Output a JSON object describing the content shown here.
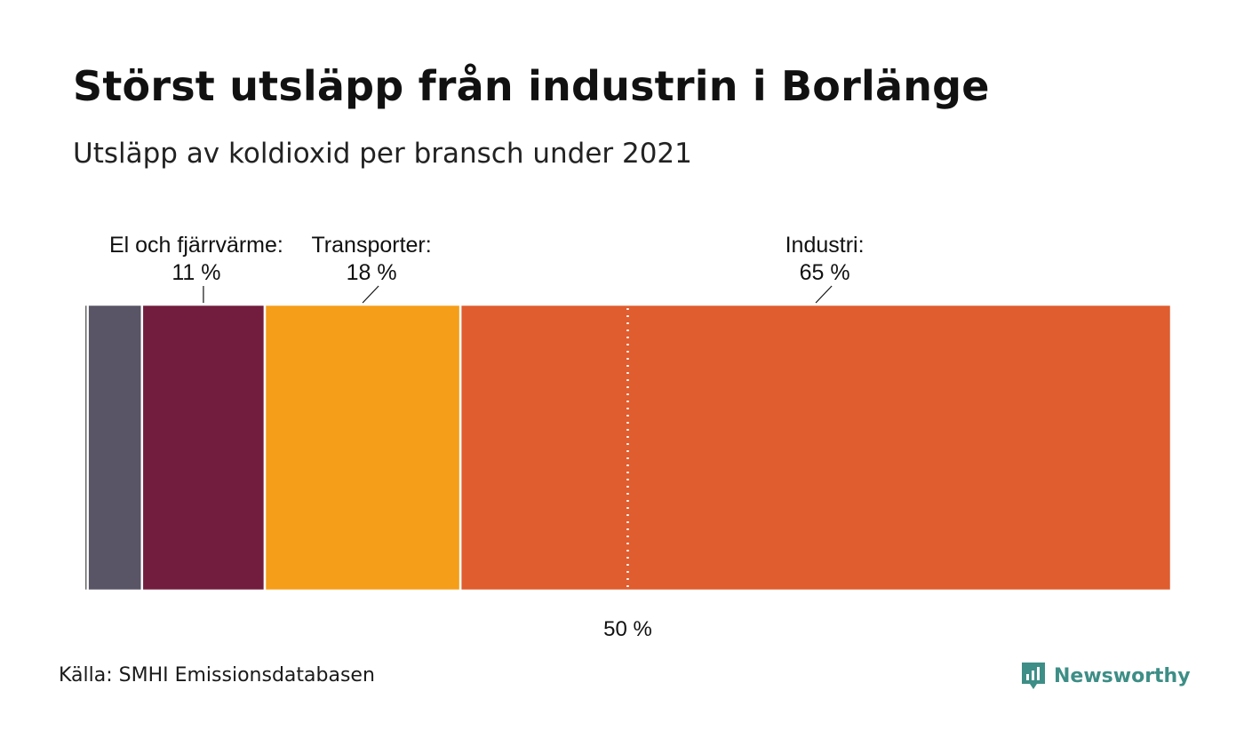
{
  "title": "Störst utsläpp från industrin i Borlänge",
  "subtitle": "Utsläpp av koldioxid per bransch under 2021",
  "source": "Källa: SMHI Emissionsdatabasen",
  "logo": {
    "text": "Newsworthy",
    "icon": "newsworthy-chart-icon",
    "color": "#3d8e86"
  },
  "chart_data": {
    "type": "bar",
    "orientation": "horizontal-stacked",
    "unit": "%",
    "total": 100,
    "segments": [
      {
        "value": 0.3,
        "color": "#333333",
        "label": "",
        "value_label": ""
      },
      {
        "value": 5,
        "color": "#595466",
        "label": "",
        "value_label": ""
      },
      {
        "value": 11.3,
        "color": "#721d3d",
        "label": "El och fjärrvärme:",
        "value_label": "11 %"
      },
      {
        "value": 18,
        "color": "#f59e19",
        "label": "Transporter:",
        "value_label": "18 %"
      },
      {
        "value": 65.4,
        "color": "#df5d2e",
        "label": "Industri:",
        "value_label": "65 %"
      }
    ],
    "reference_line": {
      "value": 50,
      "label": "50 %",
      "style": "dotted"
    }
  }
}
